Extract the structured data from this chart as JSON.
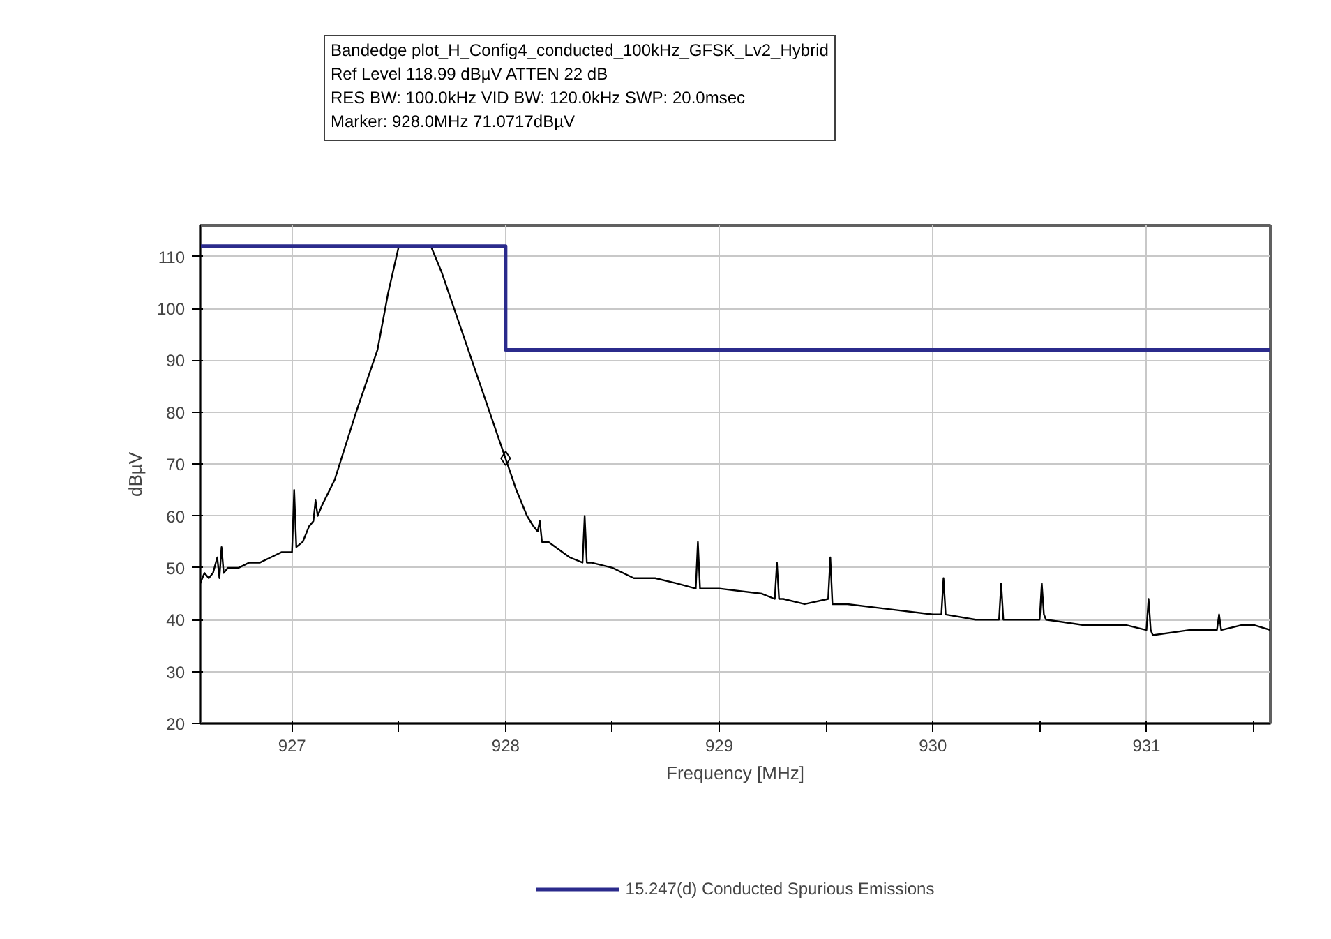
{
  "chart_data": {
    "type": "line",
    "annotations": [
      "Bandedge plot_H_Config4_conducted_100kHz_GFSK_Lv2_Hybrid",
      "Ref Level 118.99 dBµV    ATTEN 22 dB",
      "RES BW: 100.0kHz  VID BW: 120.0kHz  SWP: 20.0msec",
      "Marker: 928.0MHz  71.0717dBµV"
    ],
    "xlabel": "Frequency [MHz]",
    "ylabel": "dBµV",
    "xlim": [
      926.57,
      931.58
    ],
    "ylim": [
      20,
      116
    ],
    "xticks": [
      927,
      {
        "value": 927.5,
        "label": null
      },
      928,
      {
        "value": 928.5,
        "label": null
      },
      929,
      {
        "value": 929.5,
        "label": null
      },
      930,
      {
        "value": 930.5,
        "label": null
      },
      931,
      {
        "value": 931.5,
        "label": null
      }
    ],
    "yticks": [
      20,
      30,
      40,
      50,
      60,
      70,
      80,
      90,
      100,
      110
    ],
    "grid": true,
    "legend": "bottom",
    "series": [
      {
        "color": "#000000",
        "x": [
          926.57,
          926.59,
          926.61,
          926.63,
          926.65,
          926.66,
          926.67,
          926.68,
          926.7,
          926.75,
          926.8,
          926.85,
          926.9,
          926.95,
          927.0,
          927.01,
          927.02,
          927.05,
          927.08,
          927.1,
          927.11,
          927.12,
          927.14,
          927.2,
          927.3,
          927.4,
          927.45,
          927.5,
          927.55,
          927.6,
          927.65,
          927.7,
          927.8,
          927.9,
          928.0,
          928.05,
          928.1,
          928.13,
          928.15,
          928.16,
          928.17,
          928.2,
          928.3,
          928.36,
          928.37,
          928.38,
          928.4,
          928.5,
          928.6,
          928.7,
          928.8,
          928.89,
          928.9,
          928.91,
          928.95,
          929.0,
          929.2,
          929.26,
          929.27,
          929.28,
          929.3,
          929.4,
          929.51,
          929.52,
          929.53,
          929.6,
          929.8,
          930.0,
          930.04,
          930.05,
          930.06,
          930.2,
          930.31,
          930.32,
          930.33,
          930.5,
          930.51,
          930.52,
          930.53,
          930.7,
          930.9,
          931.0,
          931.01,
          931.02,
          931.03,
          931.2,
          931.33,
          931.34,
          931.35,
          931.45,
          931.5,
          931.58
        ],
        "values": [
          47,
          49,
          48,
          49,
          52,
          48,
          54,
          49,
          50,
          50,
          51,
          51,
          52,
          53,
          53,
          65,
          54,
          55,
          58,
          59,
          63,
          60,
          62,
          67,
          80,
          92,
          103,
          112,
          112,
          112,
          112,
          107,
          95,
          83,
          71,
          65,
          60,
          58,
          57,
          59,
          55,
          55,
          52,
          51,
          60,
          51,
          51,
          50,
          48,
          48,
          47,
          46,
          55,
          46,
          46,
          46,
          45,
          44,
          51,
          44,
          44,
          43,
          44,
          52,
          43,
          43,
          42,
          41,
          41,
          48,
          41,
          40,
          40,
          47,
          40,
          40,
          47,
          41,
          40,
          39,
          39,
          38,
          44,
          38,
          37,
          38,
          38,
          41,
          38,
          39,
          39,
          38
        ]
      },
      {
        "type": "line",
        "name": "15.247(d) Conducted Spurious Emissions",
        "color": "#2b2b8c",
        "x": [
          926.57,
          928.0,
          928.0,
          931.58
        ],
        "values": [
          112,
          112,
          92,
          92
        ]
      },
      {
        "type": "scatter",
        "color": "#000000",
        "marker": "diamond",
        "x": [
          928.0
        ],
        "values": [
          71.1
        ]
      }
    ]
  }
}
